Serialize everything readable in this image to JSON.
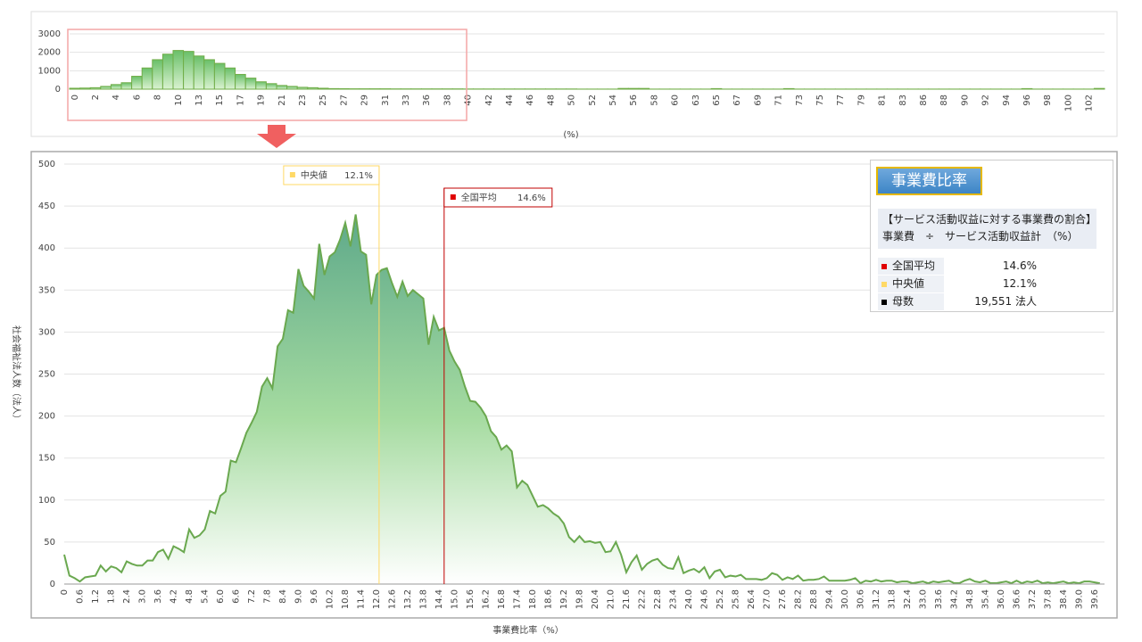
{
  "chart_data": [
    {
      "type": "bar",
      "xlabel": "(%)",
      "color": "#70ad47",
      "grid": true,
      "ylim": [
        0,
        3000
      ],
      "yticks": [
        0,
        1000,
        2000,
        3000
      ],
      "categories": [
        "0",
        null,
        "2",
        null,
        "4",
        null,
        "6",
        null,
        "8",
        null,
        "10",
        null,
        "13",
        null,
        "15",
        null,
        "17",
        null,
        "19",
        null,
        "21",
        null,
        "23",
        null,
        "25",
        null,
        "27",
        null,
        "29",
        null,
        "31",
        null,
        "33",
        null,
        "36",
        null,
        "38",
        null,
        "40",
        null,
        "42",
        null,
        "44",
        null,
        "46",
        null,
        "48",
        null,
        "50",
        null,
        "52",
        null,
        "54",
        null,
        "56",
        null,
        "58",
        null,
        "60",
        null,
        "63",
        null,
        "65",
        null,
        "67",
        null,
        "69",
        null,
        "71",
        null,
        "73",
        null,
        "75",
        null,
        "77",
        null,
        "79",
        null,
        "81",
        null,
        "83",
        null,
        "86",
        null,
        "88",
        null,
        "90",
        null,
        "92",
        null,
        "94",
        null,
        "96",
        null,
        "98",
        null,
        "100",
        null,
        "102",
        null
      ],
      "values": [
        50,
        60,
        80,
        150,
        250,
        350,
        700,
        1150,
        1600,
        1900,
        2100,
        2050,
        1800,
        1600,
        1400,
        1150,
        800,
        600,
        400,
        300,
        200,
        150,
        100,
        80,
        50,
        30,
        25,
        20,
        20,
        20,
        20,
        15,
        15,
        15,
        15,
        15,
        15,
        15,
        10,
        10,
        10,
        10,
        10,
        10,
        10,
        10,
        10,
        10,
        10,
        5,
        5,
        5,
        5,
        40,
        40,
        40,
        5,
        5,
        5,
        5,
        5,
        5,
        30,
        5,
        5,
        5,
        5,
        5,
        5,
        30,
        5,
        5,
        5,
        5,
        5,
        5,
        5,
        5,
        5,
        5,
        5,
        5,
        5,
        5,
        5,
        5,
        5,
        5,
        5,
        5,
        5,
        5,
        30,
        5,
        5,
        5,
        5,
        5,
        5,
        40
      ]
    },
    {
      "type": "area",
      "xlabel": "事業費比率（%）",
      "ylabel": "社会福祉法人数（法人）",
      "color": "#6aa84f",
      "grid": true,
      "ylim": [
        0,
        500
      ],
      "yticks": [
        0,
        50,
        100,
        150,
        200,
        250,
        300,
        350,
        400,
        450,
        500
      ],
      "categories": [
        "0",
        null,
        null,
        "0.6",
        null,
        null,
        "1.2",
        null,
        null,
        "1.8",
        null,
        null,
        "2.4",
        null,
        null,
        "3.0",
        null,
        null,
        "3.6",
        null,
        null,
        "4.2",
        null,
        null,
        "4.8",
        null,
        null,
        "5.4",
        null,
        null,
        "6.0",
        null,
        null,
        "6.6",
        null,
        null,
        "7.2",
        null,
        null,
        "7.8",
        null,
        null,
        "8.4",
        null,
        null,
        "9.0",
        null,
        null,
        "9.6",
        null,
        null,
        "10.2",
        null,
        null,
        "10.8",
        null,
        null,
        "11.4",
        null,
        null,
        "12.0",
        null,
        null,
        "12.6",
        null,
        null,
        "13.2",
        null,
        null,
        "13.8",
        null,
        null,
        "14.4",
        null,
        null,
        "15.0",
        null,
        null,
        "15.6",
        null,
        null,
        "16.2",
        null,
        null,
        "16.8",
        null,
        null,
        "17.4",
        null,
        null,
        "18.0",
        null,
        null,
        "18.6",
        null,
        null,
        "19.2",
        null,
        null,
        "19.8",
        null,
        null,
        "20.4",
        null,
        null,
        "21.0",
        null,
        null,
        "21.6",
        null,
        null,
        "22.2",
        null,
        null,
        "22.8",
        null,
        null,
        "23.4",
        null,
        null,
        "24.0",
        null,
        null,
        "24.6",
        null,
        null,
        "25.2",
        null,
        null,
        "25.8",
        null,
        null,
        "26.4",
        null,
        null,
        "27.0",
        null,
        null,
        "27.6",
        null,
        null,
        "28.2",
        null,
        null,
        "28.8",
        null,
        null,
        "29.4",
        null,
        null,
        "30.0",
        null,
        null,
        "30.6",
        null,
        null,
        "31.2",
        null,
        null,
        "31.8",
        null,
        null,
        "32.4",
        null,
        null,
        "33.0",
        null,
        null,
        "33.6",
        null,
        null,
        "34.2",
        null,
        null,
        "34.8",
        null,
        null,
        "35.4",
        null,
        null,
        "36.0",
        null,
        null,
        "36.6",
        null,
        null,
        "37.2",
        null,
        null,
        "37.8",
        null,
        null,
        "38.4",
        null,
        null,
        "39.0",
        null,
        null,
        "39.6",
        null
      ],
      "values": [
        35,
        10,
        7,
        3,
        8,
        9,
        10,
        22,
        15,
        21,
        19,
        14,
        27,
        24,
        22,
        22,
        28,
        28,
        38,
        41,
        30,
        45,
        42,
        38,
        65,
        55,
        58,
        65,
        87,
        84,
        105,
        110,
        147,
        145,
        162,
        180,
        192,
        205,
        235,
        245,
        233,
        283,
        292,
        326,
        323,
        375,
        355,
        348,
        340,
        405,
        368,
        390,
        395,
        410,
        430,
        402,
        440,
        396,
        392,
        333,
        368,
        374,
        376,
        358,
        342,
        360,
        343,
        350,
        345,
        340,
        285,
        318,
        302,
        305,
        278,
        265,
        255,
        235,
        218,
        217,
        210,
        200,
        182,
        175,
        160,
        165,
        158,
        115,
        123,
        118,
        105,
        92,
        94,
        90,
        84,
        80,
        72,
        56,
        50,
        57,
        50,
        51,
        49,
        50,
        38,
        39,
        50,
        35,
        14,
        26,
        34,
        17,
        24,
        28,
        30,
        23,
        19,
        18,
        32,
        13,
        16,
        18,
        14,
        20,
        7,
        15,
        17,
        8,
        10,
        9,
        11,
        6,
        6,
        6,
        5,
        7,
        13,
        11,
        5,
        8,
        6,
        10,
        4,
        5,
        5,
        6,
        9,
        4,
        4,
        4,
        4,
        5,
        7,
        1,
        4,
        3,
        5,
        3,
        4,
        4,
        2,
        3,
        3,
        1,
        2,
        3,
        1,
        3,
        2,
        3,
        4,
        1,
        1,
        4,
        6,
        3,
        2,
        4,
        1,
        1,
        2,
        3,
        1,
        4,
        1,
        3,
        2,
        4,
        1,
        2,
        1,
        2,
        3,
        1,
        2,
        1,
        3,
        3,
        2,
        1
      ],
      "x_step": 0.2,
      "reference_lines": [
        {
          "name": "中央値",
          "value": 12.1,
          "value_label": "12.1%",
          "color": "#ffd966"
        },
        {
          "name": "全国平均",
          "value": 14.6,
          "value_label": "14.6%",
          "color": "#c00000"
        }
      ]
    }
  ],
  "info_panel": {
    "title": "事業費比率",
    "description": [
      "【サービス活動収益に対する事業費の割合】",
      "事業費　÷　サービス活動収益計　（%）"
    ],
    "rows": [
      {
        "name": "全国平均",
        "value": "14.6%",
        "color": "#e00000"
      },
      {
        "name": "中央値",
        "value": "12.1%",
        "color": "#ffd966"
      },
      {
        "name": "母数",
        "value": "19,551  法人",
        "color": "#000000"
      }
    ]
  }
}
